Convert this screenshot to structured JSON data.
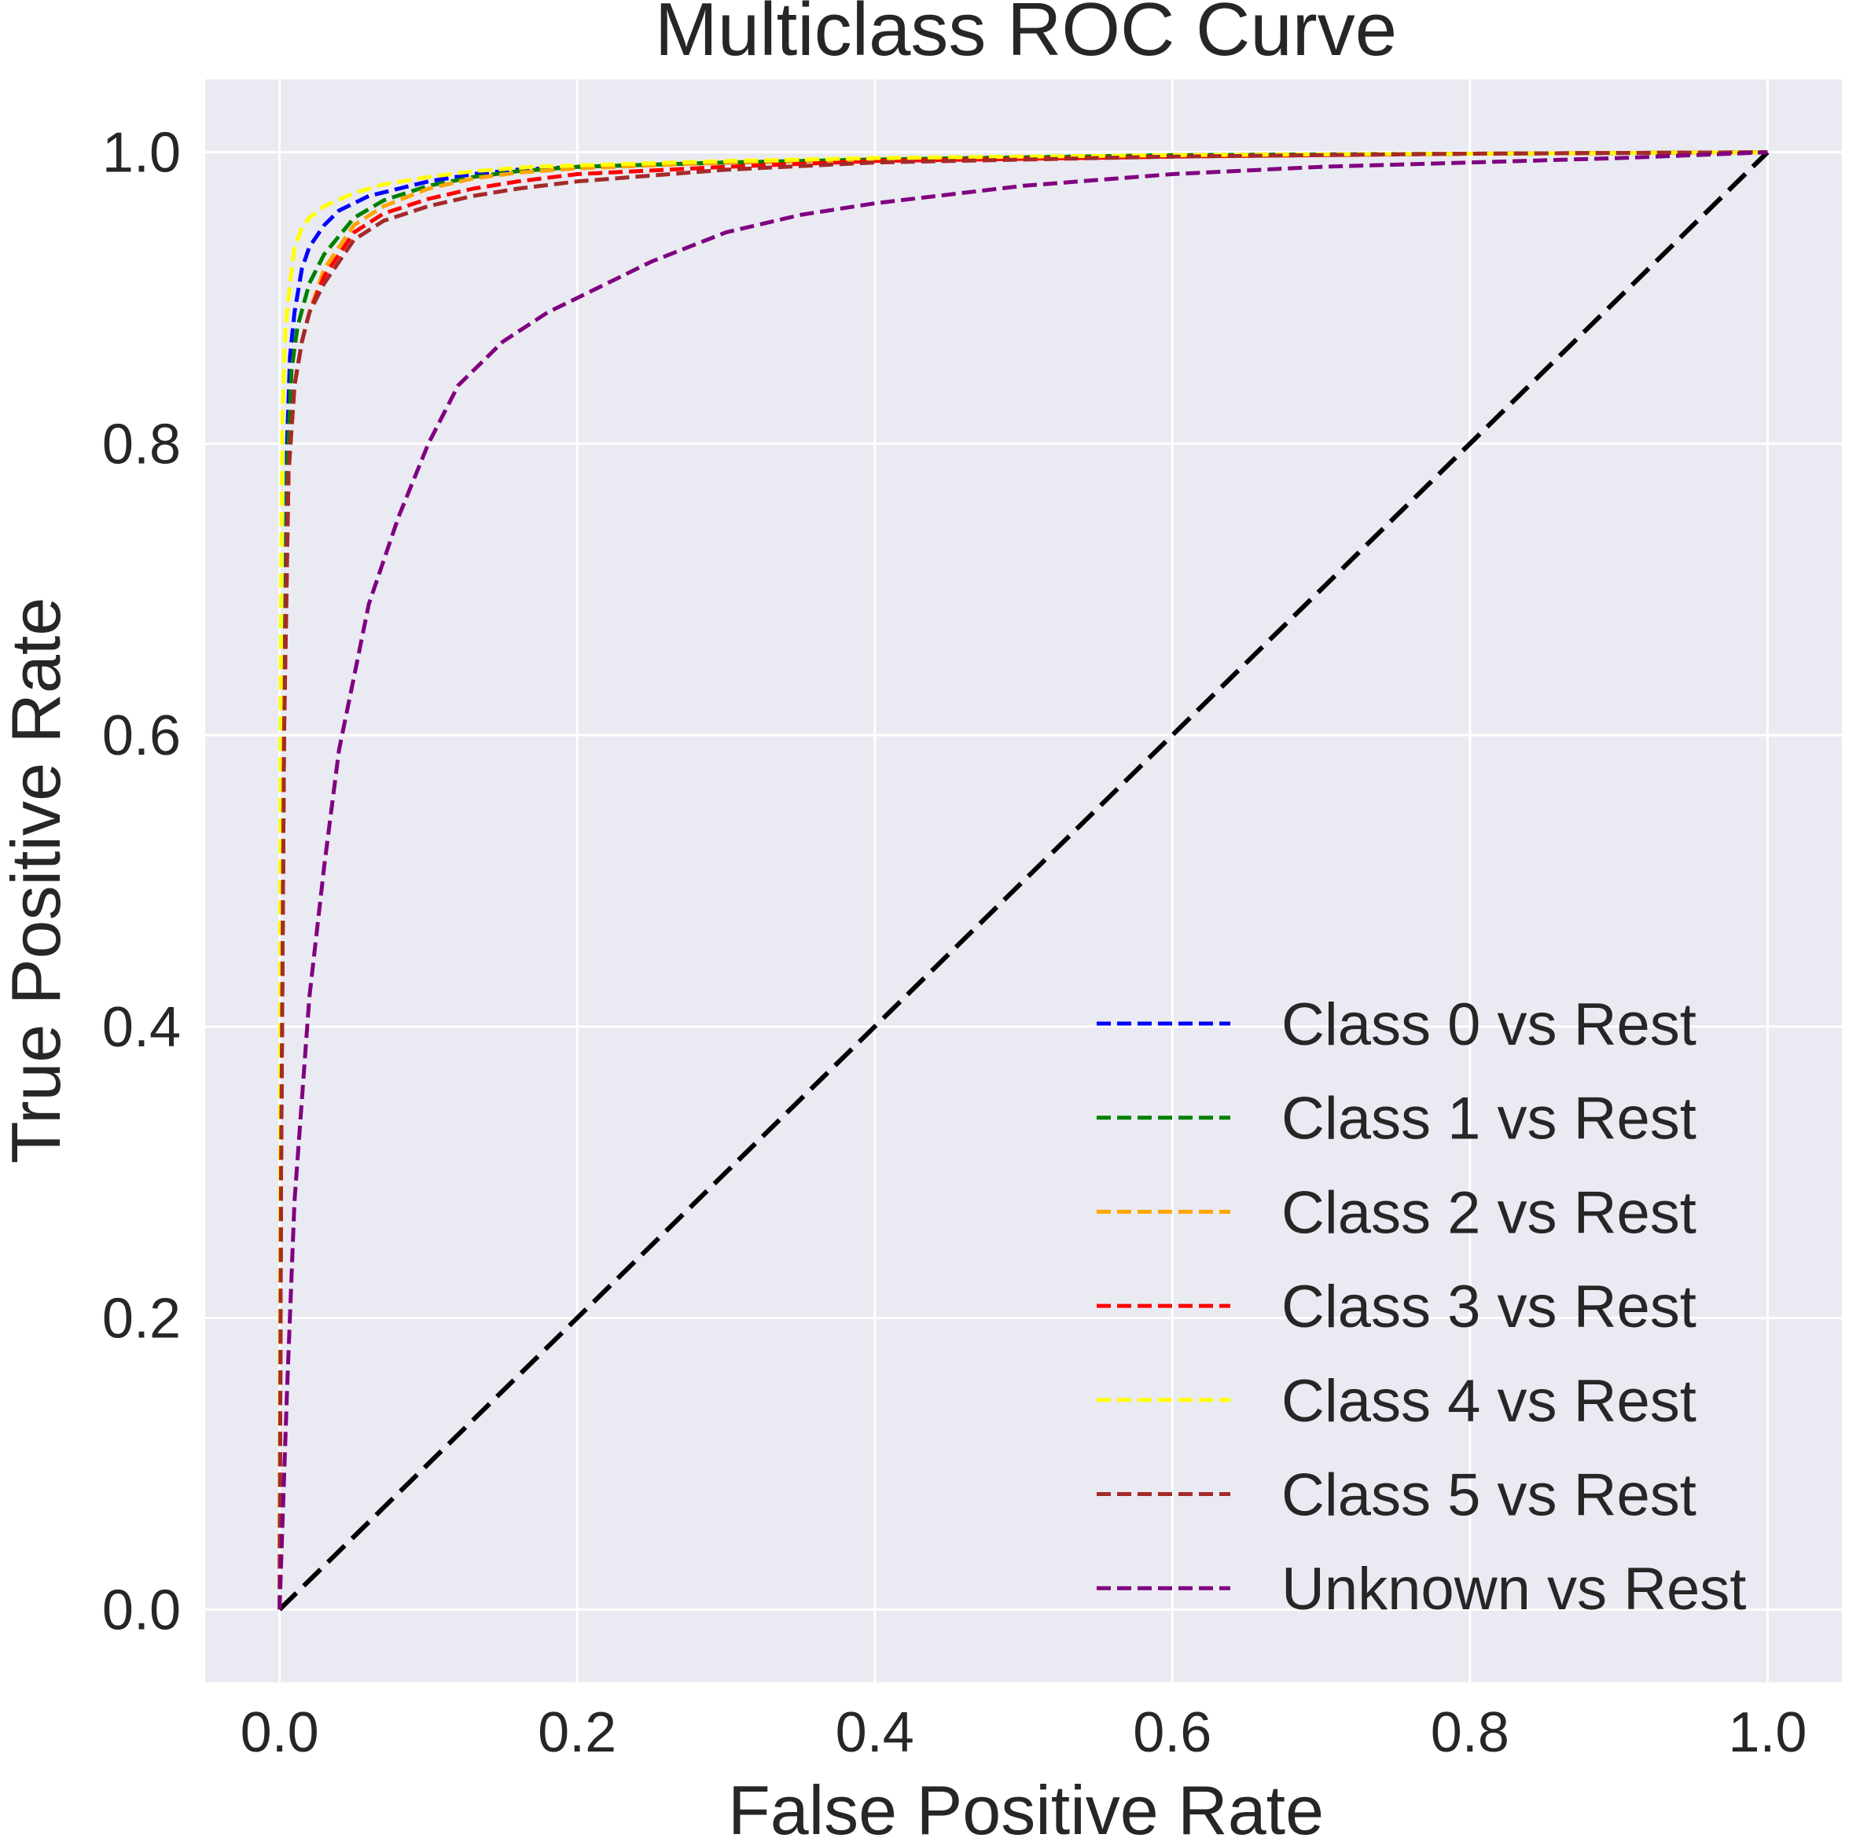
{
  "chart_data": {
    "type": "line",
    "title": "Multiclass ROC Curve",
    "xlabel": "False Positive Rate",
    "ylabel": "True Positive Rate",
    "xlim": [
      -0.05,
      1.05
    ],
    "ylim": [
      -0.05,
      1.05
    ],
    "xticks": [
      "0.0",
      "0.2",
      "0.4",
      "0.6",
      "0.8",
      "1.0"
    ],
    "yticks": [
      "0.0",
      "0.2",
      "0.4",
      "0.6",
      "0.8",
      "1.0"
    ],
    "xtick_values": [
      0,
      0.2,
      0.4,
      0.6,
      0.8,
      1.0
    ],
    "ytick_values": [
      0,
      0.2,
      0.4,
      0.6,
      0.8,
      1.0
    ],
    "grid": true,
    "background": "#eaeaf2",
    "legend_position": "lower-right",
    "series": [
      {
        "name": "Class 0 vs Rest",
        "color": "#0000ff",
        "x": [
          0,
          0.001,
          0.003,
          0.005,
          0.007,
          0.01,
          0.015,
          0.02,
          0.03,
          0.04,
          0.06,
          0.08,
          0.1,
          0.13,
          0.16,
          0.2,
          0.3,
          0.4,
          0.6,
          0.8,
          1.0
        ],
        "y": [
          0,
          0.3,
          0.6,
          0.8,
          0.86,
          0.89,
          0.92,
          0.935,
          0.95,
          0.96,
          0.97,
          0.975,
          0.98,
          0.985,
          0.988,
          0.99,
          0.993,
          0.995,
          0.998,
          0.999,
          1.0
        ]
      },
      {
        "name": "Class 1 vs Rest",
        "color": "#008000",
        "x": [
          0,
          0.001,
          0.003,
          0.005,
          0.008,
          0.012,
          0.02,
          0.03,
          0.05,
          0.07,
          0.1,
          0.13,
          0.16,
          0.2,
          0.3,
          0.4,
          0.6,
          0.8,
          1.0
        ],
        "y": [
          0,
          0.3,
          0.6,
          0.78,
          0.85,
          0.88,
          0.91,
          0.93,
          0.955,
          0.967,
          0.977,
          0.983,
          0.987,
          0.99,
          0.993,
          0.995,
          0.998,
          0.999,
          1.0
        ]
      },
      {
        "name": "Class 2 vs Rest",
        "color": "#ffa500",
        "x": [
          0,
          0.001,
          0.003,
          0.006,
          0.01,
          0.015,
          0.02,
          0.03,
          0.05,
          0.07,
          0.1,
          0.13,
          0.16,
          0.2,
          0.3,
          0.4,
          0.6,
          0.8,
          1.0
        ],
        "y": [
          0,
          0.3,
          0.6,
          0.78,
          0.84,
          0.87,
          0.89,
          0.92,
          0.95,
          0.963,
          0.975,
          0.982,
          0.986,
          0.989,
          0.993,
          0.995,
          0.998,
          0.999,
          1.0
        ]
      },
      {
        "name": "Class 3 vs Rest",
        "color": "#ff0000",
        "x": [
          0,
          0.001,
          0.003,
          0.006,
          0.01,
          0.015,
          0.02,
          0.03,
          0.05,
          0.07,
          0.1,
          0.13,
          0.16,
          0.2,
          0.3,
          0.4,
          0.6,
          0.8,
          1.0
        ],
        "y": [
          0,
          0.3,
          0.6,
          0.78,
          0.84,
          0.87,
          0.89,
          0.915,
          0.945,
          0.958,
          0.968,
          0.975,
          0.98,
          0.985,
          0.99,
          0.994,
          0.997,
          0.999,
          1.0
        ]
      },
      {
        "name": "Class 4 vs Rest",
        "color": "#ffff00",
        "x": [
          0,
          0.0005,
          0.001,
          0.002,
          0.004,
          0.007,
          0.01,
          0.015,
          0.02,
          0.03,
          0.05,
          0.07,
          0.1,
          0.13,
          0.17,
          0.2,
          0.3,
          0.4,
          0.6,
          0.8,
          1.0
        ],
        "y": [
          0,
          0.5,
          0.7,
          0.82,
          0.88,
          0.91,
          0.935,
          0.948,
          0.955,
          0.963,
          0.972,
          0.978,
          0.983,
          0.987,
          0.99,
          0.991,
          0.994,
          0.996,
          0.998,
          0.999,
          1.0
        ]
      },
      {
        "name": "Class 5 vs Rest",
        "color": "#a52a2a",
        "x": [
          0,
          0.001,
          0.003,
          0.006,
          0.01,
          0.015,
          0.02,
          0.03,
          0.05,
          0.07,
          0.1,
          0.13,
          0.16,
          0.2,
          0.25,
          0.3,
          0.4,
          0.6,
          0.8,
          1.0
        ],
        "y": [
          0,
          0.3,
          0.6,
          0.78,
          0.84,
          0.87,
          0.89,
          0.91,
          0.94,
          0.953,
          0.963,
          0.97,
          0.975,
          0.98,
          0.984,
          0.988,
          0.993,
          0.997,
          0.999,
          1.0
        ]
      },
      {
        "name": "Unknown vs Rest",
        "color": "#800080",
        "x": [
          0,
          0.005,
          0.01,
          0.02,
          0.03,
          0.04,
          0.05,
          0.06,
          0.08,
          0.1,
          0.12,
          0.15,
          0.18,
          0.21,
          0.25,
          0.3,
          0.35,
          0.4,
          0.5,
          0.6,
          0.7,
          0.8,
          0.9,
          1.0
        ],
        "y": [
          0,
          0.15,
          0.28,
          0.42,
          0.51,
          0.59,
          0.64,
          0.69,
          0.75,
          0.8,
          0.84,
          0.87,
          0.89,
          0.905,
          0.925,
          0.945,
          0.957,
          0.965,
          0.977,
          0.985,
          0.99,
          0.993,
          0.996,
          1.0
        ]
      }
    ],
    "reference_line": {
      "color": "#000000",
      "x": [
        0,
        1
      ],
      "y": [
        0,
        1
      ]
    }
  }
}
